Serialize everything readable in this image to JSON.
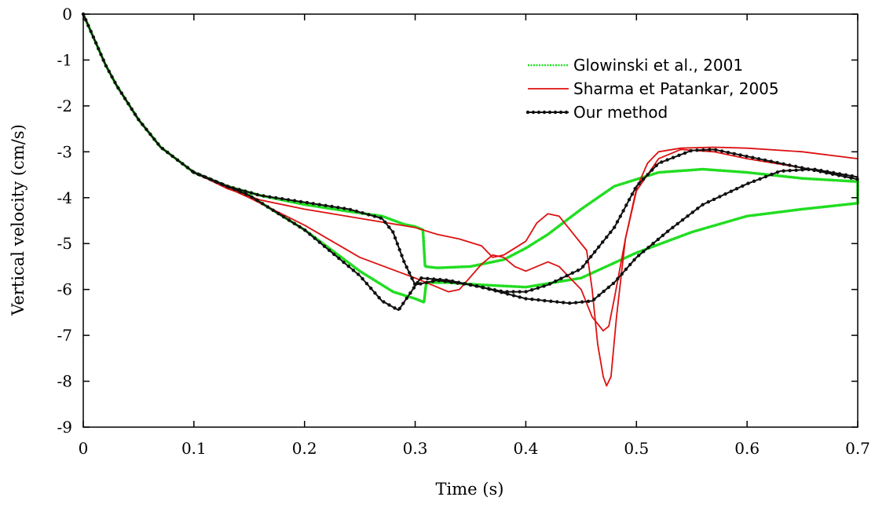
{
  "chart_data": {
    "type": "line",
    "title": "",
    "xlabel": "Time (s)",
    "ylabel": "Vertical velocity (cm/s)",
    "xlim": [
      0,
      0.7
    ],
    "ylim": [
      -9,
      0
    ],
    "xticks": [
      0,
      0.1,
      0.2,
      0.3,
      0.4,
      0.5,
      0.6,
      0.7
    ],
    "yticks": [
      0,
      -1,
      -2,
      -3,
      -4,
      -5,
      -6,
      -7,
      -8,
      -9
    ],
    "xtick_labels": [
      "0",
      "0.1",
      "0.2",
      "0.3",
      "0.4",
      "0.5",
      "0.6",
      "0.7"
    ],
    "ytick_labels": [
      "0",
      "-1",
      "-2",
      "-3",
      "-4",
      "-5",
      "-6",
      "-7",
      "-8",
      "-9"
    ],
    "grid": false,
    "legend_position": "top-right",
    "series": [
      {
        "name": "Glowinski et al., 2001",
        "color": "#22dd22",
        "style": "dotted",
        "lines": [
          [
            [
              0,
              0
            ],
            [
              0.01,
              -0.55
            ],
            [
              0.02,
              -1.1
            ],
            [
              0.03,
              -1.55
            ],
            [
              0.05,
              -2.3
            ],
            [
              0.07,
              -2.9
            ],
            [
              0.1,
              -3.45
            ],
            [
              0.13,
              -3.75
            ],
            [
              0.16,
              -3.95
            ],
            [
              0.2,
              -4.15
            ],
            [
              0.24,
              -4.3
            ],
            [
              0.27,
              -4.4
            ],
            [
              0.29,
              -4.58
            ],
            [
              0.3,
              -4.63
            ],
            [
              0.307,
              -4.7
            ],
            [
              0.309,
              -5.5
            ],
            [
              0.32,
              -5.53
            ],
            [
              0.35,
              -5.5
            ],
            [
              0.38,
              -5.35
            ],
            [
              0.4,
              -5.1
            ],
            [
              0.42,
              -4.8
            ],
            [
              0.45,
              -4.25
            ],
            [
              0.48,
              -3.75
            ],
            [
              0.52,
              -3.45
            ],
            [
              0.56,
              -3.38
            ],
            [
              0.6,
              -3.45
            ],
            [
              0.65,
              -3.58
            ],
            [
              0.7,
              -3.65
            ]
          ],
          [
            [
              0.1,
              -3.45
            ],
            [
              0.15,
              -3.95
            ],
            [
              0.2,
              -4.7
            ],
            [
              0.25,
              -5.6
            ],
            [
              0.28,
              -6.05
            ],
            [
              0.3,
              -6.2
            ],
            [
              0.308,
              -6.28
            ],
            [
              0.31,
              -5.85
            ],
            [
              0.33,
              -5.85
            ],
            [
              0.36,
              -5.9
            ],
            [
              0.4,
              -5.95
            ],
            [
              0.45,
              -5.75
            ],
            [
              0.5,
              -5.2
            ],
            [
              0.55,
              -4.75
            ],
            [
              0.6,
              -4.4
            ],
            [
              0.65,
              -4.25
            ],
            [
              0.7,
              -4.12
            ]
          ],
          [
            [
              0.7,
              -4.12
            ],
            [
              0.7,
              -3.65
            ]
          ]
        ]
      },
      {
        "name": "Sharma et Patankar, 2005",
        "color": "#dd1111",
        "style": "solid",
        "lines": [
          [
            [
              0,
              0
            ],
            [
              0.01,
              -0.55
            ],
            [
              0.02,
              -1.1
            ],
            [
              0.03,
              -1.55
            ],
            [
              0.05,
              -2.3
            ],
            [
              0.07,
              -2.9
            ],
            [
              0.1,
              -3.45
            ],
            [
              0.13,
              -3.8
            ],
            [
              0.16,
              -4.05
            ],
            [
              0.2,
              -4.25
            ],
            [
              0.25,
              -4.45
            ],
            [
              0.3,
              -4.65
            ],
            [
              0.32,
              -4.8
            ],
            [
              0.34,
              -4.9
            ],
            [
              0.36,
              -5.05
            ],
            [
              0.37,
              -5.3
            ],
            [
              0.38,
              -5.25
            ],
            [
              0.4,
              -4.95
            ],
            [
              0.41,
              -4.55
            ],
            [
              0.42,
              -4.35
            ],
            [
              0.43,
              -4.4
            ],
            [
              0.44,
              -4.7
            ],
            [
              0.455,
              -5.15
            ],
            [
              0.46,
              -6.0
            ],
            [
              0.465,
              -7.2
            ],
            [
              0.47,
              -7.9
            ],
            [
              0.473,
              -8.1
            ],
            [
              0.477,
              -7.9
            ],
            [
              0.482,
              -6.6
            ],
            [
              0.49,
              -4.9
            ],
            [
              0.5,
              -3.8
            ],
            [
              0.51,
              -3.25
            ],
            [
              0.52,
              -3.0
            ],
            [
              0.54,
              -2.92
            ],
            [
              0.57,
              -2.9
            ],
            [
              0.6,
              -2.92
            ],
            [
              0.65,
              -3.0
            ],
            [
              0.7,
              -3.15
            ]
          ],
          [
            [
              0.1,
              -3.45
            ],
            [
              0.15,
              -4.0
            ],
            [
              0.2,
              -4.6
            ],
            [
              0.25,
              -5.3
            ],
            [
              0.3,
              -5.75
            ],
            [
              0.33,
              -6.05
            ],
            [
              0.34,
              -6.0
            ],
            [
              0.36,
              -5.45
            ],
            [
              0.37,
              -5.25
            ],
            [
              0.38,
              -5.3
            ],
            [
              0.39,
              -5.5
            ],
            [
              0.4,
              -5.6
            ],
            [
              0.41,
              -5.5
            ],
            [
              0.42,
              -5.4
            ],
            [
              0.43,
              -5.5
            ],
            [
              0.45,
              -6.0
            ],
            [
              0.46,
              -6.6
            ],
            [
              0.47,
              -6.9
            ],
            [
              0.475,
              -6.8
            ],
            [
              0.48,
              -6.2
            ],
            [
              0.49,
              -4.9
            ],
            [
              0.5,
              -3.85
            ],
            [
              0.52,
              -3.15
            ],
            [
              0.54,
              -2.95
            ],
            [
              0.57,
              -3.0
            ],
            [
              0.6,
              -3.15
            ],
            [
              0.65,
              -3.35
            ],
            [
              0.7,
              -3.55
            ]
          ]
        ]
      },
      {
        "name": "Our method",
        "color": "#111111",
        "style": "solid-markers",
        "lines": [
          [
            [
              0,
              0
            ],
            [
              0.01,
              -0.55
            ],
            [
              0.02,
              -1.1
            ],
            [
              0.03,
              -1.55
            ],
            [
              0.05,
              -2.3
            ],
            [
              0.07,
              -2.9
            ],
            [
              0.1,
              -3.45
            ],
            [
              0.13,
              -3.75
            ],
            [
              0.16,
              -3.95
            ],
            [
              0.2,
              -4.1
            ],
            [
              0.24,
              -4.25
            ],
            [
              0.27,
              -4.45
            ],
            [
              0.28,
              -4.75
            ],
            [
              0.29,
              -5.4
            ],
            [
              0.3,
              -5.9
            ],
            [
              0.32,
              -5.8
            ],
            [
              0.35,
              -5.9
            ],
            [
              0.38,
              -6.05
            ],
            [
              0.4,
              -6.05
            ],
            [
              0.42,
              -5.9
            ],
            [
              0.45,
              -5.55
            ],
            [
              0.48,
              -4.65
            ],
            [
              0.5,
              -3.75
            ],
            [
              0.52,
              -3.25
            ],
            [
              0.55,
              -2.97
            ],
            [
              0.57,
              -2.95
            ],
            [
              0.6,
              -3.1
            ],
            [
              0.65,
              -3.35
            ],
            [
              0.7,
              -3.6
            ]
          ],
          [
            [
              0.1,
              -3.45
            ],
            [
              0.15,
              -3.95
            ],
            [
              0.2,
              -4.7
            ],
            [
              0.25,
              -5.7
            ],
            [
              0.27,
              -6.25
            ],
            [
              0.285,
              -6.45
            ],
            [
              0.295,
              -6.1
            ],
            [
              0.305,
              -5.75
            ],
            [
              0.33,
              -5.8
            ],
            [
              0.36,
              -5.95
            ],
            [
              0.4,
              -6.2
            ],
            [
              0.44,
              -6.3
            ],
            [
              0.46,
              -6.25
            ],
            [
              0.48,
              -5.85
            ],
            [
              0.5,
              -5.3
            ],
            [
              0.53,
              -4.7
            ],
            [
              0.56,
              -4.15
            ],
            [
              0.6,
              -3.7
            ],
            [
              0.63,
              -3.42
            ],
            [
              0.66,
              -3.38
            ],
            [
              0.7,
              -3.55
            ]
          ]
        ]
      }
    ]
  }
}
